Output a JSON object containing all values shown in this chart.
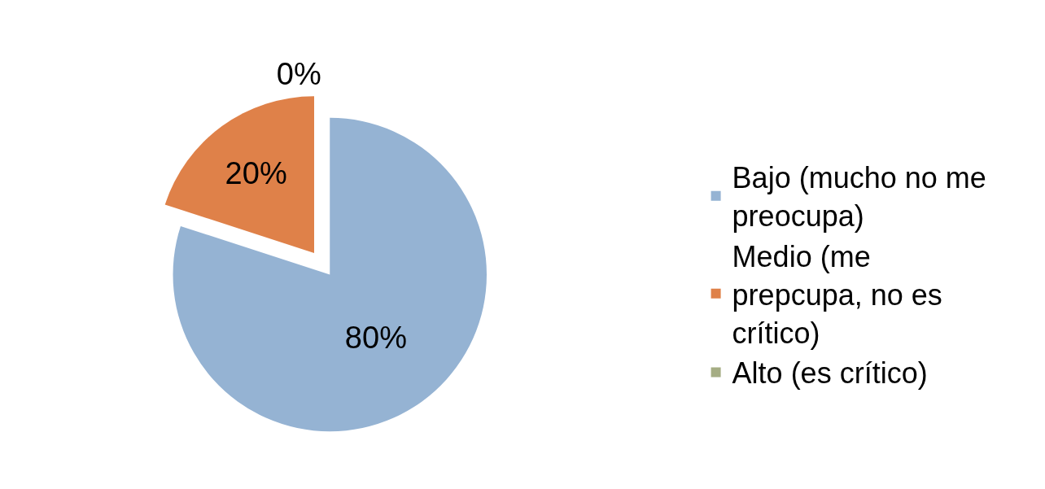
{
  "chart_data": {
    "type": "pie",
    "categories": [
      "Bajo (mucho no me preocupa)",
      "Medio (me prepcupa, no es crítico)",
      "Alto (es crítico)"
    ],
    "values": [
      80,
      20,
      0
    ],
    "value_labels": [
      "80%",
      "20%",
      "0%"
    ],
    "colors": [
      "#95b3d3",
      "#df8149",
      "#a5ad84"
    ],
    "legend": "right"
  }
}
